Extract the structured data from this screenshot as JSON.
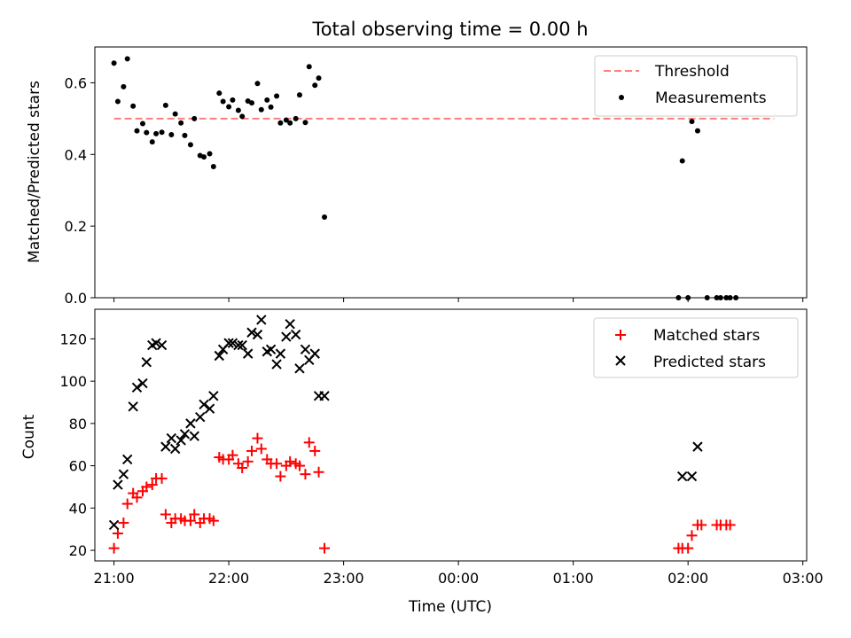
{
  "chart_data": [
    {
      "type": "scatter",
      "title": "Total observing time = 0.00 h",
      "xlabel": "",
      "ylabel": "Matched/Predicted stars",
      "xlim": [
        "20:50",
        "03:02"
      ],
      "ylim": [
        0.0,
        0.7
      ],
      "xticks": [
        "21:00",
        "22:00",
        "23:00",
        "00:00",
        "01:00",
        "02:00",
        "03:00"
      ],
      "yticks": [
        "0.0",
        "0.2",
        "0.4",
        "0.6"
      ],
      "legend_position": "top-right",
      "colors": {
        "threshold": "#ff7f7f",
        "measurements": "#000000"
      },
      "threshold": {
        "name": "Threshold",
        "y": 0.5,
        "x_start": "21:00",
        "x_end": "02:45"
      },
      "series": [
        {
          "name": "Measurements",
          "points": [
            [
              "21:00",
              0.655
            ],
            [
              "21:02",
              0.548
            ],
            [
              "21:05",
              0.589
            ],
            [
              "21:07",
              0.667
            ],
            [
              "21:10",
              0.535
            ],
            [
              "21:12",
              0.466
            ],
            [
              "21:15",
              0.486
            ],
            [
              "21:17",
              0.461
            ],
            [
              "21:20",
              0.435
            ],
            [
              "21:22",
              0.458
            ],
            [
              "21:25",
              0.462
            ],
            [
              "21:27",
              0.537
            ],
            [
              "21:30",
              0.455
            ],
            [
              "21:32",
              0.513
            ],
            [
              "21:35",
              0.488
            ],
            [
              "21:37",
              0.453
            ],
            [
              "21:40",
              0.427
            ],
            [
              "21:42",
              0.5
            ],
            [
              "21:45",
              0.397
            ],
            [
              "21:47",
              0.393
            ],
            [
              "21:50",
              0.402
            ],
            [
              "21:52",
              0.366
            ],
            [
              "21:55",
              0.571
            ],
            [
              "21:57",
              0.548
            ],
            [
              "22:00",
              0.533
            ],
            [
              "22:02",
              0.552
            ],
            [
              "22:05",
              0.523
            ],
            [
              "22:07",
              0.506
            ],
            [
              "22:10",
              0.549
            ],
            [
              "22:12",
              0.544
            ],
            [
              "22:15",
              0.598
            ],
            [
              "22:17",
              0.525
            ],
            [
              "22:20",
              0.552
            ],
            [
              "22:22",
              0.532
            ],
            [
              "22:25",
              0.563
            ],
            [
              "22:27",
              0.488
            ],
            [
              "22:30",
              0.496
            ],
            [
              "22:32",
              0.488
            ],
            [
              "22:35",
              0.5
            ],
            [
              "22:37",
              0.566
            ],
            [
              "22:40",
              0.489
            ],
            [
              "22:42",
              0.645
            ],
            [
              "22:45",
              0.593
            ],
            [
              "22:47",
              0.613
            ],
            [
              "22:50",
              0.225
            ],
            [
              "01:55",
              0.0
            ],
            [
              "01:57",
              0.382
            ],
            [
              "02:00",
              0.0
            ],
            [
              "02:02",
              0.492
            ],
            [
              "02:05",
              0.466
            ],
            [
              "02:10",
              0.0
            ],
            [
              "02:15",
              0.0
            ],
            [
              "02:17",
              0.0
            ],
            [
              "02:20",
              0.0
            ],
            [
              "02:22",
              0.0
            ],
            [
              "02:25",
              0.0
            ]
          ]
        }
      ]
    },
    {
      "type": "scatter",
      "title": "",
      "xlabel": "Time (UTC)",
      "ylabel": "Count",
      "xlim": [
        "20:50",
        "03:02"
      ],
      "ylim": [
        15,
        134
      ],
      "xticks": [
        "21:00",
        "22:00",
        "23:00",
        "00:00",
        "01:00",
        "02:00",
        "03:00"
      ],
      "yticks": [
        "20",
        "40",
        "60",
        "80",
        "100",
        "120"
      ],
      "legend_position": "top-right",
      "colors": {
        "matched": "#ff0000",
        "predicted": "#000000"
      },
      "series": [
        {
          "name": "Matched stars",
          "marker": "plus",
          "points": [
            [
              "21:00",
              21
            ],
            [
              "21:02",
              28
            ],
            [
              "21:05",
              33
            ],
            [
              "21:07",
              42
            ],
            [
              "21:10",
              47
            ],
            [
              "21:12",
              45
            ],
            [
              "21:15",
              48
            ],
            [
              "21:17",
              50
            ],
            [
              "21:20",
              51
            ],
            [
              "21:22",
              54
            ],
            [
              "21:25",
              54
            ],
            [
              "21:27",
              37
            ],
            [
              "21:30",
              33
            ],
            [
              "21:32",
              35
            ],
            [
              "21:35",
              35
            ],
            [
              "21:37",
              34
            ],
            [
              "21:40",
              34
            ],
            [
              "21:42",
              37
            ],
            [
              "21:45",
              33
            ],
            [
              "21:47",
              35
            ],
            [
              "21:50",
              35
            ],
            [
              "21:52",
              34
            ],
            [
              "21:55",
              64
            ],
            [
              "21:57",
              63
            ],
            [
              "22:00",
              63
            ],
            [
              "22:02",
              65
            ],
            [
              "22:05",
              61
            ],
            [
              "22:07",
              59
            ],
            [
              "22:10",
              62
            ],
            [
              "22:12",
              67
            ],
            [
              "22:15",
              73
            ],
            [
              "22:17",
              68
            ],
            [
              "22:20",
              63
            ],
            [
              "22:22",
              61
            ],
            [
              "22:25",
              61
            ],
            [
              "22:27",
              55
            ],
            [
              "22:30",
              60
            ],
            [
              "22:32",
              62
            ],
            [
              "22:35",
              61
            ],
            [
              "22:37",
              60
            ],
            [
              "22:40",
              56
            ],
            [
              "22:42",
              71
            ],
            [
              "22:45",
              67
            ],
            [
              "22:47",
              57
            ],
            [
              "22:50",
              21
            ],
            [
              "01:55",
              21
            ],
            [
              "01:57",
              21
            ],
            [
              "02:00",
              21
            ],
            [
              "02:02",
              27
            ],
            [
              "02:05",
              32
            ],
            [
              "02:07",
              32
            ],
            [
              "02:15",
              32
            ],
            [
              "02:17",
              32
            ],
            [
              "02:20",
              32
            ],
            [
              "02:22",
              32
            ]
          ]
        },
        {
          "name": "Predicted stars",
          "marker": "x",
          "points": [
            [
              "21:00",
              32
            ],
            [
              "21:02",
              51
            ],
            [
              "21:05",
              56
            ],
            [
              "21:07",
              63
            ],
            [
              "21:10",
              88
            ],
            [
              "21:12",
              97
            ],
            [
              "21:15",
              99
            ],
            [
              "21:17",
              109
            ],
            [
              "21:20",
              117
            ],
            [
              "21:22",
              118
            ],
            [
              "21:25",
              117
            ],
            [
              "21:27",
              69
            ],
            [
              "21:30",
              73
            ],
            [
              "21:32",
              68
            ],
            [
              "21:35",
              72
            ],
            [
              "21:37",
              75
            ],
            [
              "21:40",
              80
            ],
            [
              "21:42",
              74
            ],
            [
              "21:45",
              83
            ],
            [
              "21:47",
              89
            ],
            [
              "21:50",
              87
            ],
            [
              "21:52",
              93
            ],
            [
              "21:55",
              112
            ],
            [
              "21:57",
              115
            ],
            [
              "22:00",
              118
            ],
            [
              "22:02",
              118
            ],
            [
              "22:05",
              117
            ],
            [
              "22:07",
              117
            ],
            [
              "22:10",
              113
            ],
            [
              "22:12",
              123
            ],
            [
              "22:15",
              122
            ],
            [
              "22:17",
              129
            ],
            [
              "22:20",
              114
            ],
            [
              "22:22",
              115
            ],
            [
              "22:25",
              108
            ],
            [
              "22:27",
              113
            ],
            [
              "22:30",
              121
            ],
            [
              "22:32",
              127
            ],
            [
              "22:35",
              122
            ],
            [
              "22:37",
              106
            ],
            [
              "22:40",
              115
            ],
            [
              "22:42",
              110
            ],
            [
              "22:45",
              113
            ],
            [
              "22:47",
              93
            ],
            [
              "22:50",
              93
            ],
            [
              "01:57",
              55
            ],
            [
              "02:02",
              55
            ],
            [
              "02:05",
              69
            ]
          ]
        }
      ]
    }
  ]
}
